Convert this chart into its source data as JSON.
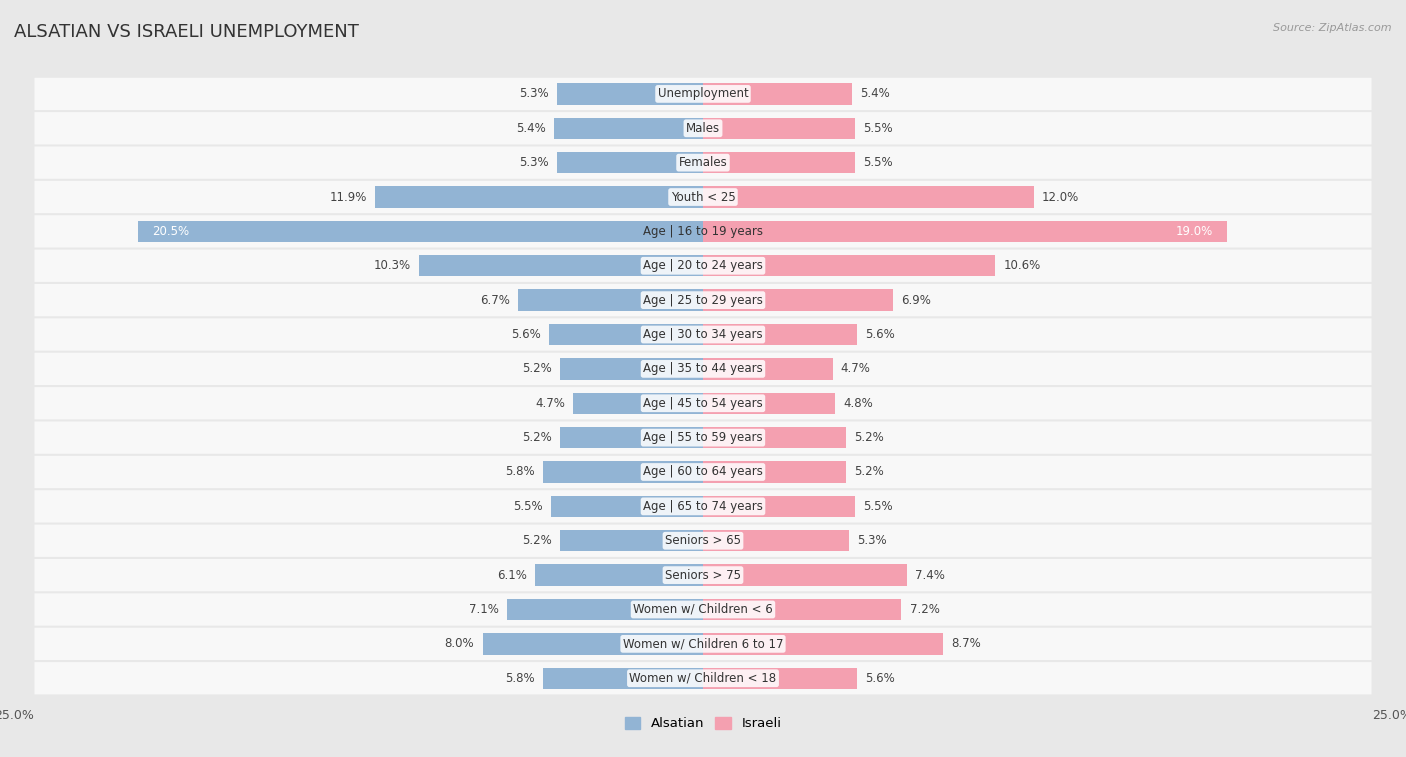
{
  "title": "ALSATIAN VS ISRAELI UNEMPLOYMENT",
  "source": "Source: ZipAtlas.com",
  "categories": [
    "Unemployment",
    "Males",
    "Females",
    "Youth < 25",
    "Age | 16 to 19 years",
    "Age | 20 to 24 years",
    "Age | 25 to 29 years",
    "Age | 30 to 34 years",
    "Age | 35 to 44 years",
    "Age | 45 to 54 years",
    "Age | 55 to 59 years",
    "Age | 60 to 64 years",
    "Age | 65 to 74 years",
    "Seniors > 65",
    "Seniors > 75",
    "Women w/ Children < 6",
    "Women w/ Children 6 to 17",
    "Women w/ Children < 18"
  ],
  "alsatian": [
    5.3,
    5.4,
    5.3,
    11.9,
    20.5,
    10.3,
    6.7,
    5.6,
    5.2,
    4.7,
    5.2,
    5.8,
    5.5,
    5.2,
    6.1,
    7.1,
    8.0,
    5.8
  ],
  "israeli": [
    5.4,
    5.5,
    5.5,
    12.0,
    19.0,
    10.6,
    6.9,
    5.6,
    4.7,
    4.8,
    5.2,
    5.2,
    5.5,
    5.3,
    7.4,
    7.2,
    8.7,
    5.6
  ],
  "alsatian_color": "#92b4d4",
  "israeli_color": "#f4a0b0",
  "alsatian_label": "Alsatian",
  "israeli_label": "Israeli",
  "xlim": 25.0,
  "page_bg": "#e8e8e8",
  "row_bg": "#f8f8f8",
  "bar_height": 0.62,
  "title_fontsize": 13,
  "label_fontsize": 8.5,
  "tick_fontsize": 9,
  "value_fontsize": 8.5,
  "special_row": 4,
  "special_label_color": "white"
}
